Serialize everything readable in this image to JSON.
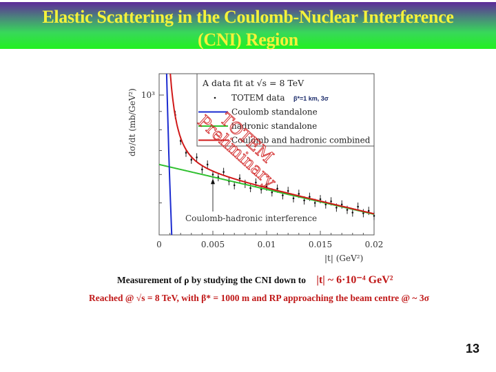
{
  "slide": {
    "title_line1": "Elastic Scattering in the Coulomb-Nuclear Interference",
    "title_line2": "(CNI) Region",
    "caption1_text": "Measurement of ρ by studying the CNI down to",
    "caption1_highlight": "|t| ~ 6·10⁻⁴ GeV²",
    "caption2": "Reached @ √s = 8 TeV, with β* = 1000 m and RP approaching the beam centre @ ~ 3σ",
    "page_number": "13",
    "colors": {
      "title_text": "#f4f23a",
      "caption_red": "#c01818",
      "watermark": "#d02020"
    }
  },
  "chart_data": {
    "type": "scatter",
    "title": "A data fit at √s = 8 TeV",
    "annotation_small": "β*=1 km, 3σ",
    "watermark_line1": "TOTEM",
    "watermark_line2": "Preliminary",
    "arrow_annotation": "Coulomb-hadronic interference",
    "arrow_t": 0.005,
    "xlabel": "|t|   (GeV²)",
    "ylabel": "dσ/dt   (mb/GeV²)",
    "xlim": [
      0,
      0.02
    ],
    "ylim": [
      407,
      1147
    ],
    "yscale": "log",
    "xticks": [
      "0",
      "0.005",
      "0.01",
      "0.015",
      "0.02"
    ],
    "xtick_values": [
      0,
      0.005,
      0.01,
      0.015,
      0.02
    ],
    "ytick_label": "10³",
    "ytick_value": 1000,
    "legend": [
      {
        "label": "TOTEM data",
        "type": "points",
        "color": "#111111"
      },
      {
        "label": "Coulomb standalone",
        "type": "line",
        "color": "#1a2ad0"
      },
      {
        "label": "hadronic standalone",
        "type": "line",
        "color": "#30c030"
      },
      {
        "label": "Coulomb and hadronic combined",
        "type": "line",
        "color": "#d01818"
      }
    ],
    "legend_placement": "top-right",
    "models": {
      "hadronic_A": 640,
      "hadronic_B": 16,
      "coulomb_C": 0.00056
    },
    "data_t": [
      0.0015,
      0.002,
      0.0025,
      0.003,
      0.0035,
      0.004,
      0.0045,
      0.005,
      0.0055,
      0.006,
      0.0065,
      0.007,
      0.0075,
      0.008,
      0.0085,
      0.009,
      0.0095,
      0.01,
      0.0105,
      0.011,
      0.0115,
      0.012,
      0.0125,
      0.013,
      0.0135,
      0.014,
      0.0145,
      0.015,
      0.0155,
      0.016,
      0.0165,
      0.017,
      0.0175,
      0.018,
      0.0185,
      0.019,
      0.0195,
      0.02
    ],
    "data_values": [
      880,
      745,
      690,
      660,
      670,
      620,
      640,
      600,
      590,
      610,
      575,
      560,
      585,
      565,
      550,
      570,
      545,
      555,
      535,
      548,
      525,
      540,
      515,
      530,
      508,
      520,
      500,
      512,
      495,
      505,
      485,
      495,
      478,
      470,
      488,
      468,
      475,
      460
    ]
  }
}
